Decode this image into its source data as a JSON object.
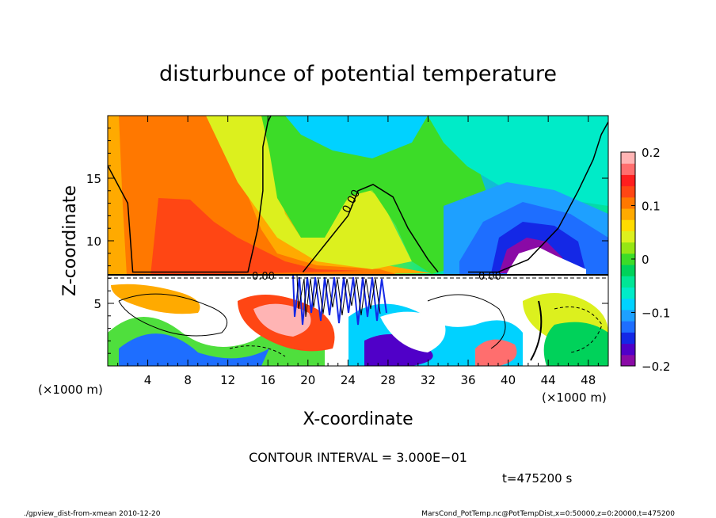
{
  "chart_data": {
    "type": "heatmap",
    "title": "disturbunce of potential temperature",
    "xlabel": "X-coordinate",
    "ylabel": "Z-coordinate",
    "x_unit_left": "(×1000 m)",
    "x_unit_right": "(×1000 m)",
    "xlim": [
      0,
      50
    ],
    "ylim": [
      0,
      20
    ],
    "x_ticks": [
      4,
      8,
      12,
      16,
      20,
      24,
      28,
      32,
      36,
      40,
      44,
      48
    ],
    "x_tick_labels": [
      "4",
      "8",
      "12",
      "16",
      "20",
      "24",
      "28",
      "32",
      "36",
      "40",
      "44",
      "48"
    ],
    "y_ticks": [
      5,
      10,
      15
    ],
    "y_tick_labels": [
      "5",
      "10",
      "15"
    ],
    "colorbar": {
      "range": [
        -0.2,
        0.2
      ],
      "ticks": [
        0.2,
        0.1,
        0,
        -0.1,
        -0.2
      ],
      "tick_labels": [
        "0.2",
        "0.1",
        "0",
        "−0.1",
        "−0.2"
      ],
      "colors": [
        "#8a0aa6",
        "#5000c8",
        "#1428e6",
        "#1e6eff",
        "#1ea0ff",
        "#00d2ff",
        "#00ebc8",
        "#00e696",
        "#00d25a",
        "#3cdc28",
        "#96e614",
        "#dcf01e",
        "#ffdc00",
        "#ffaa00",
        "#ff7800",
        "#ff4614",
        "#ff1e1e",
        "#ff6e6e",
        "#ffb4b4"
      ]
    },
    "contour_label": "0.00",
    "contour_interval_text": "CONTOUR INTERVAL = 3.000E−01",
    "time_text": "t=475200 s",
    "zero_contour_upper": [
      [
        0,
        16
      ],
      [
        2,
        13
      ],
      [
        2.5,
        7.5
      ],
      [
        14,
        7.5
      ],
      [
        15,
        11
      ],
      [
        15.5,
        14
      ],
      [
        15.5,
        17.5
      ],
      [
        16,
        19.5
      ],
      [
        16.3,
        20
      ]
    ],
    "zero_contour_middle": [
      [
        19.5,
        7.5
      ],
      [
        20.5,
        8.5
      ],
      [
        22,
        10
      ],
      [
        24,
        12
      ],
      [
        25,
        14
      ],
      [
        26.5,
        14.5
      ],
      [
        28.5,
        13.5
      ],
      [
        30,
        11
      ],
      [
        32,
        8.5
      ],
      [
        33,
        7.5
      ]
    ],
    "zero_contour_right": [
      [
        36,
        7.5
      ],
      [
        39,
        7.5
      ],
      [
        42,
        8.5
      ],
      [
        45,
        11
      ],
      [
        47,
        14
      ],
      [
        48.5,
        16.5
      ],
      [
        49.3,
        18.5
      ],
      [
        50,
        19.5
      ]
    ]
  },
  "footer": {
    "left": "./gpview_dist-from-xmean  2010-12-20",
    "right": "MarsCond_PotTemp.nc@PotTempDist,x=0:50000,z=0:20000,t=475200"
  }
}
